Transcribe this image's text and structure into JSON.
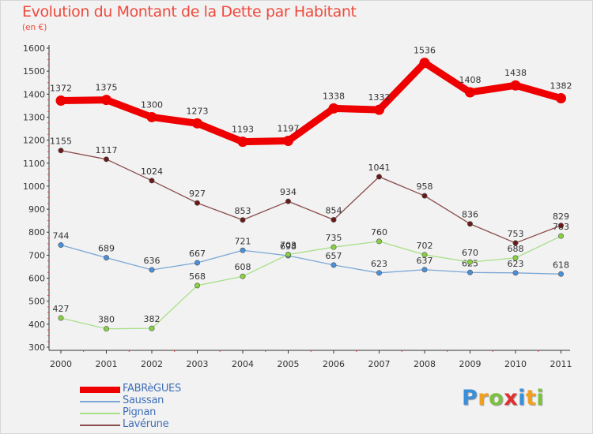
{
  "chart_data": {
    "type": "line",
    "title": "Evolution du Montant de la Dette par Habitant",
    "unit_label": "(en €)",
    "categories": [
      "2000",
      "2001",
      "2002",
      "2003",
      "2004",
      "2005",
      "2006",
      "2007",
      "2008",
      "2009",
      "2010",
      "2011"
    ],
    "y_ticks": [
      "300",
      "400",
      "500",
      "600",
      "700",
      "800",
      "900",
      "1000",
      "1100",
      "1200",
      "1300",
      "1400",
      "1500",
      "1600"
    ],
    "ylim": [
      300,
      1600
    ],
    "grid": false,
    "legend_position": "bottom-left",
    "series": [
      {
        "name": "FABRèGUES",
        "color": "#ee0000",
        "marker": "#ee0000",
        "emphasis": true,
        "values": [
          1372,
          1375,
          1300,
          1273,
          1193,
          1197,
          1338,
          1332,
          1536,
          1408,
          1438,
          1382
        ],
        "labels": [
          "1372",
          "1375",
          "1300",
          "1273",
          "1193",
          "1197",
          "1338",
          "1332",
          "1536",
          "1408",
          "1438",
          "1382"
        ]
      },
      {
        "name": "Saussan",
        "color": "#7aa6d6",
        "marker": "#4a90d9",
        "emphasis": false,
        "values": [
          744,
          689,
          636,
          667,
          721,
          698,
          657,
          623,
          637,
          625,
          623,
          618
        ],
        "labels": [
          "744",
          "689",
          "636",
          "667",
          "721",
          "698",
          "657",
          "623",
          "637",
          "625",
          "623",
          "618"
        ]
      },
      {
        "name": "Pignan",
        "color": "#a8e088",
        "marker": "#88d040",
        "emphasis": false,
        "values": [
          427,
          380,
          382,
          568,
          608,
          703,
          735,
          760,
          702,
          670,
          688,
          783
        ],
        "labels": [
          "427",
          "380",
          "382",
          "568",
          "608",
          "703",
          "735",
          "760",
          "702",
          "670",
          "688",
          "783"
        ]
      },
      {
        "name": "Lavérune",
        "color": "#8a4a4a",
        "marker": "#6a1a1a",
        "emphasis": false,
        "values": [
          1155,
          1117,
          1024,
          927,
          853,
          934,
          854,
          1041,
          958,
          836,
          753,
          829
        ],
        "labels": [
          "1155",
          "1117",
          "1024",
          "927",
          "853",
          "934",
          "854",
          "1041",
          "958",
          "836",
          "753",
          "829"
        ]
      }
    ]
  },
  "logo": {
    "letters": [
      "P",
      "r",
      "o",
      "x",
      "i",
      "t",
      "i"
    ],
    "colors": [
      "#3a8fd8",
      "#f0a020",
      "#7cc040",
      "#e03030",
      "#3a8fd8",
      "#f0a020",
      "#7cc040"
    ]
  }
}
